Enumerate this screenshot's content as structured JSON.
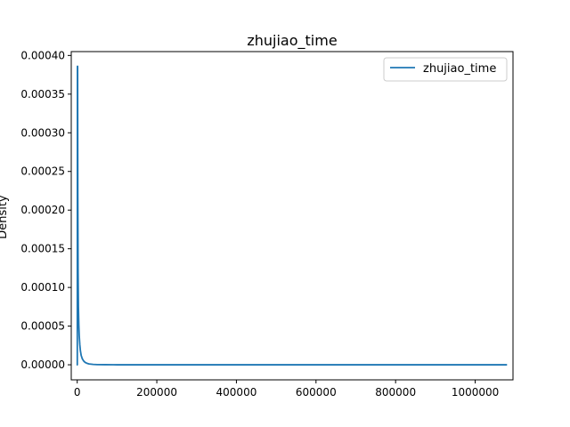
{
  "chart_data": {
    "type": "line",
    "title": "zhujiao_time",
    "xlabel": "",
    "ylabel": "Density",
    "xlim": [
      -15000,
      1095000
    ],
    "ylim": [
      -1.95e-05,
      0.000405
    ],
    "xticks": [
      0,
      200000,
      400000,
      600000,
      800000,
      1000000
    ],
    "xtick_labels": [
      "0",
      "200000",
      "400000",
      "600000",
      "800000",
      "1000000"
    ],
    "yticks": [
      0.0,
      5e-05,
      0.0001,
      0.00015,
      0.0002,
      0.00025,
      0.0003,
      0.00035,
      0.0004
    ],
    "ytick_labels": [
      "0.00000",
      "0.00005",
      "0.00010",
      "0.00015",
      "0.00020",
      "0.00025",
      "0.00030",
      "0.00035",
      "0.00040"
    ],
    "legend": {
      "placement": "top-right",
      "entries": [
        "zhujiao_time"
      ]
    },
    "grid": false,
    "colors": {
      "series": "#1f77b4"
    },
    "series": [
      {
        "name": "zhujiao_time",
        "x": [
          -1500,
          -300,
          200,
          600,
          1000,
          1500,
          2200,
          3000,
          4000,
          5000,
          6500,
          8000,
          10000,
          13000,
          16000,
          20000,
          25000,
          30000,
          40000,
          50000,
          70000,
          100000,
          200000,
          400000,
          600000,
          800000,
          1000000,
          1080000
        ],
        "y": [
          0.0,
          0.0,
          0.0,
          0.000386,
          0.000386,
          0.00022,
          0.00012,
          7.5e-05,
          5.2e-05,
          3.8e-05,
          2.6e-05,
          1.8e-05,
          1.2e-05,
          7.5e-06,
          5e-06,
          3e-06,
          1.8e-06,
          1.1e-06,
          5e-07,
          2e-07,
          1e-07,
          0.0,
          0.0,
          0.0,
          0.0,
          0.0,
          0.0,
          0.0
        ]
      }
    ]
  }
}
